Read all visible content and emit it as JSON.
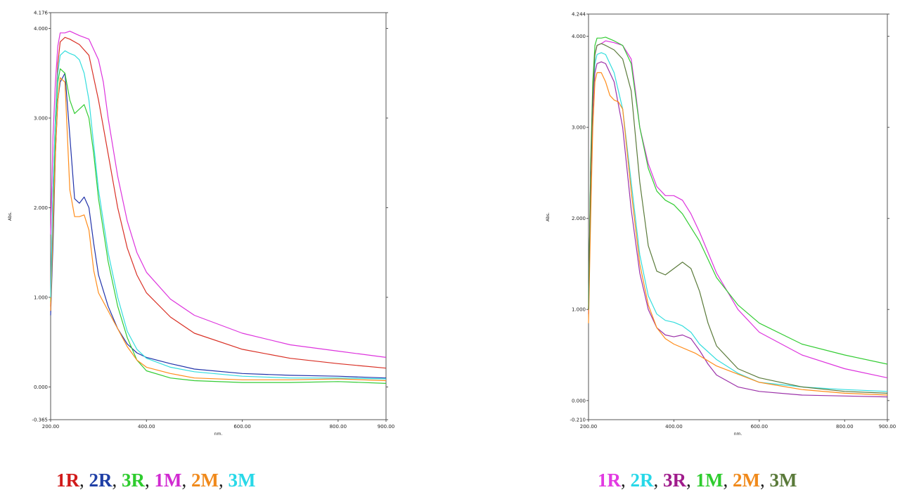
{
  "chart_data": [
    {
      "type": "line",
      "xlabel": "nm.",
      "ylabel": "Abs.",
      "xlim": [
        200,
        900
      ],
      "ylim": [
        -0.365,
        4.176
      ],
      "xticks": [
        "200.00",
        "400.00",
        "600.00",
        "800.00",
        "900.00"
      ],
      "yticks": [
        "4.176",
        "4.000",
        "3.000",
        "2.000",
        "1.000",
        "0.000",
        "-0.365"
      ],
      "legend": [
        {
          "text": "1R",
          "color": "#d11a1a"
        },
        {
          "text": "2R",
          "color": "#1f3fa6"
        },
        {
          "text": "3R",
          "color": "#2ecc2e"
        },
        {
          "text": "1M",
          "color": "#d12ad1"
        },
        {
          "text": "2M",
          "color": "#f08a1c"
        },
        {
          "text": "3M",
          "color": "#28d8e8"
        }
      ],
      "series": [
        {
          "name": "1R",
          "color": "#d93025",
          "x": [
            200,
            205,
            210,
            215,
            220,
            230,
            240,
            260,
            280,
            300,
            320,
            340,
            360,
            380,
            400,
            450,
            500,
            600,
            700,
            800,
            900
          ],
          "y": [
            0.9,
            2.2,
            3.0,
            3.6,
            3.85,
            3.9,
            3.88,
            3.82,
            3.7,
            3.2,
            2.6,
            2.0,
            1.55,
            1.25,
            1.05,
            0.78,
            0.6,
            0.42,
            0.32,
            0.26,
            0.21
          ]
        },
        {
          "name": "2R",
          "color": "#2233aa",
          "x": [
            200,
            205,
            210,
            215,
            220,
            230,
            240,
            250,
            260,
            270,
            280,
            290,
            300,
            320,
            340,
            360,
            380,
            400,
            450,
            500,
            600,
            700,
            800,
            900
          ],
          "y": [
            0.8,
            1.6,
            2.6,
            3.2,
            3.4,
            3.5,
            2.8,
            2.1,
            2.05,
            2.12,
            2.0,
            1.6,
            1.25,
            0.9,
            0.65,
            0.48,
            0.38,
            0.33,
            0.26,
            0.2,
            0.15,
            0.13,
            0.12,
            0.1
          ]
        },
        {
          "name": "3R",
          "color": "#33cc33",
          "x": [
            200,
            205,
            210,
            215,
            220,
            230,
            240,
            250,
            260,
            270,
            280,
            290,
            300,
            320,
            340,
            360,
            380,
            400,
            450,
            500,
            600,
            700,
            800,
            900
          ],
          "y": [
            0.95,
            1.8,
            2.9,
            3.4,
            3.55,
            3.5,
            3.2,
            3.05,
            3.1,
            3.15,
            3.0,
            2.6,
            2.1,
            1.4,
            0.9,
            0.55,
            0.3,
            0.18,
            0.1,
            0.07,
            0.05,
            0.05,
            0.06,
            0.04
          ]
        },
        {
          "name": "1M",
          "color": "#dd33dd",
          "x": [
            200,
            205,
            210,
            215,
            220,
            230,
            240,
            260,
            280,
            300,
            310,
            320,
            340,
            360,
            380,
            400,
            450,
            500,
            600,
            700,
            800,
            900
          ],
          "y": [
            1.7,
            2.8,
            3.4,
            3.8,
            3.95,
            3.95,
            3.97,
            3.92,
            3.88,
            3.65,
            3.4,
            3.0,
            2.35,
            1.85,
            1.5,
            1.28,
            0.98,
            0.8,
            0.6,
            0.47,
            0.4,
            0.33
          ]
        },
        {
          "name": "2M",
          "color": "#ff8c1a",
          "x": [
            200,
            205,
            210,
            215,
            220,
            230,
            240,
            250,
            260,
            270,
            280,
            290,
            300,
            320,
            340,
            360,
            380,
            400,
            450,
            500,
            600,
            700,
            800,
            900
          ],
          "y": [
            0.85,
            1.8,
            2.6,
            3.2,
            3.45,
            3.4,
            2.2,
            1.9,
            1.9,
            1.92,
            1.75,
            1.3,
            1.05,
            0.85,
            0.65,
            0.45,
            0.3,
            0.22,
            0.15,
            0.1,
            0.08,
            0.08,
            0.09,
            0.07
          ]
        },
        {
          "name": "3M",
          "color": "#33dddd",
          "x": [
            200,
            205,
            210,
            215,
            220,
            230,
            240,
            250,
            260,
            270,
            280,
            290,
            300,
            320,
            340,
            360,
            380,
            400,
            450,
            500,
            600,
            700,
            800,
            900
          ],
          "y": [
            1.0,
            2.2,
            3.0,
            3.5,
            3.7,
            3.75,
            3.72,
            3.7,
            3.65,
            3.5,
            3.2,
            2.7,
            2.2,
            1.5,
            1.0,
            0.62,
            0.42,
            0.32,
            0.22,
            0.17,
            0.12,
            0.1,
            0.1,
            0.09
          ]
        }
      ]
    },
    {
      "type": "line",
      "xlabel": "nm.",
      "ylabel": "Abs.",
      "xlim": [
        200,
        900
      ],
      "ylim": [
        -0.21,
        4.244
      ],
      "xticks": [
        "200.00",
        "400.00",
        "600.00",
        "800.00",
        "900.00"
      ],
      "yticks": [
        "4.244",
        "4.000",
        "3.000",
        "2.000",
        "1.000",
        "0.000",
        "-0.210"
      ],
      "legend": [
        {
          "text": "1R",
          "color": "#e23ae2"
        },
        {
          "text": "2R",
          "color": "#28d8e8"
        },
        {
          "text": "3R",
          "color": "#a01c8c"
        },
        {
          "text": "1M",
          "color": "#2ecc2e"
        },
        {
          "text": "2M",
          "color": "#f08a1c"
        },
        {
          "text": "3M",
          "color": "#5a7a3a"
        }
      ],
      "series": [
        {
          "name": "1R",
          "color": "#dd33dd",
          "x": [
            200,
            205,
            210,
            215,
            220,
            230,
            240,
            260,
            280,
            300,
            310,
            320,
            340,
            360,
            380,
            400,
            420,
            440,
            460,
            500,
            550,
            600,
            700,
            800,
            900
          ],
          "y": [
            1.0,
            2.5,
            3.4,
            3.8,
            3.9,
            3.92,
            3.95,
            3.93,
            3.9,
            3.75,
            3.4,
            3.0,
            2.6,
            2.35,
            2.25,
            2.25,
            2.2,
            2.05,
            1.85,
            1.4,
            1.0,
            0.75,
            0.5,
            0.35,
            0.25
          ]
        },
        {
          "name": "2R",
          "color": "#33dddd",
          "x": [
            200,
            205,
            210,
            215,
            220,
            230,
            240,
            260,
            280,
            300,
            320,
            340,
            360,
            380,
            400,
            420,
            440,
            460,
            500,
            550,
            600,
            700,
            800,
            900
          ],
          "y": [
            1.0,
            2.5,
            3.3,
            3.7,
            3.8,
            3.82,
            3.8,
            3.6,
            3.2,
            2.4,
            1.6,
            1.15,
            0.95,
            0.88,
            0.86,
            0.82,
            0.75,
            0.62,
            0.45,
            0.3,
            0.2,
            0.15,
            0.12,
            0.1
          ]
        },
        {
          "name": "3R",
          "color": "#9b30a8",
          "x": [
            200,
            205,
            210,
            215,
            220,
            230,
            240,
            260,
            280,
            300,
            320,
            340,
            360,
            380,
            400,
            420,
            440,
            460,
            480,
            500,
            550,
            600,
            700,
            800,
            900
          ],
          "y": [
            0.95,
            2.4,
            3.2,
            3.6,
            3.7,
            3.72,
            3.7,
            3.5,
            3.0,
            2.1,
            1.4,
            1.0,
            0.8,
            0.72,
            0.7,
            0.72,
            0.68,
            0.55,
            0.4,
            0.28,
            0.15,
            0.1,
            0.06,
            0.05,
            0.04
          ]
        },
        {
          "name": "1M",
          "color": "#33cc33",
          "x": [
            200,
            205,
            210,
            215,
            220,
            230,
            240,
            260,
            280,
            300,
            320,
            340,
            360,
            380,
            400,
            420,
            440,
            460,
            500,
            550,
            600,
            700,
            800,
            900
          ],
          "y": [
            1.0,
            2.6,
            3.5,
            3.9,
            3.98,
            3.98,
            3.99,
            3.95,
            3.9,
            3.7,
            3.0,
            2.55,
            2.3,
            2.2,
            2.15,
            2.05,
            1.9,
            1.75,
            1.35,
            1.05,
            0.85,
            0.62,
            0.5,
            0.4
          ]
        },
        {
          "name": "2M",
          "color": "#ff8c1a",
          "x": [
            200,
            205,
            210,
            215,
            220,
            230,
            240,
            250,
            260,
            270,
            280,
            300,
            320,
            340,
            360,
            380,
            400,
            450,
            500,
            600,
            700,
            800,
            900
          ],
          "y": [
            0.85,
            2.0,
            3.0,
            3.5,
            3.6,
            3.6,
            3.5,
            3.35,
            3.3,
            3.28,
            3.2,
            2.3,
            1.5,
            1.05,
            0.8,
            0.68,
            0.62,
            0.52,
            0.38,
            0.2,
            0.12,
            0.08,
            0.06
          ]
        },
        {
          "name": "3M",
          "color": "#5a7a3a",
          "x": [
            200,
            205,
            210,
            215,
            220,
            230,
            240,
            260,
            280,
            300,
            320,
            340,
            360,
            380,
            400,
            420,
            440,
            460,
            480,
            500,
            550,
            600,
            700,
            800,
            900
          ],
          "y": [
            1.0,
            2.5,
            3.4,
            3.8,
            3.9,
            3.92,
            3.9,
            3.85,
            3.75,
            3.4,
            2.4,
            1.7,
            1.42,
            1.38,
            1.45,
            1.52,
            1.45,
            1.2,
            0.85,
            0.6,
            0.35,
            0.25,
            0.15,
            0.1,
            0.08
          ]
        }
      ]
    }
  ]
}
